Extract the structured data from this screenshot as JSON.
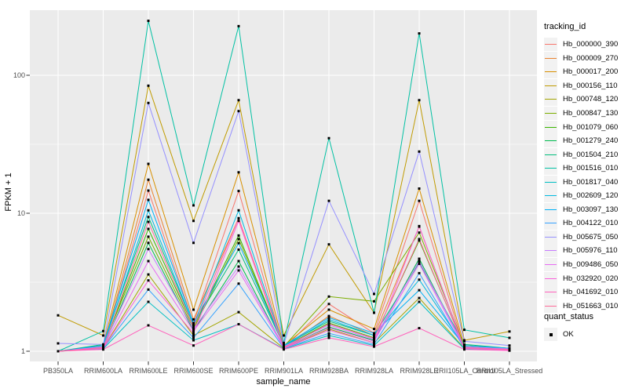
{
  "chart_data": {
    "type": "line",
    "title": "",
    "xlabel": "sample_name",
    "ylabel": "FPKM + 1",
    "y_scale": "log10",
    "grid": true,
    "legend_position": "right",
    "legend_title": "tracking_id",
    "legend2_title": "quant_status",
    "legend2_items": [
      {
        "label": "OK"
      }
    ],
    "point_shape": "black-square",
    "panel_bg": "#EBEBEB",
    "grid_color": "#FFFFFF",
    "axis_text_color": "#4D4D4D",
    "ylim": [
      0.85,
      296
    ],
    "y_ticks": [
      {
        "label": "1",
        "value": 1
      },
      {
        "label": "10",
        "value": 10
      },
      {
        "label": "100",
        "value": 100
      }
    ],
    "y_minor_values": [
      3.162,
      31.62
    ],
    "categories": [
      "PB350LA",
      "RRIM600LA",
      "RRIM600LE",
      "RRIM600SE",
      "RRIM600PE",
      "RRIM901LA",
      "RRIM928BA",
      "RRIM928LA",
      "RRIM928LE",
      "RRII105LA_Control",
      "RRII105LA_Stressed"
    ],
    "series": [
      {
        "name": "Hb_000000_390",
        "color": "#F8766D",
        "values": [
          1.0,
          1.05,
          14.6,
          1.6,
          14.5,
          1.05,
          2.2,
          1.35,
          12.3,
          1.05,
          1.02
        ]
      },
      {
        "name": "Hb_000009_270",
        "color": "#EA8331",
        "values": [
          1.0,
          1.06,
          17.5,
          1.7,
          9.2,
          1.06,
          1.8,
          1.3,
          8.0,
          1.06,
          1.03
        ]
      },
      {
        "name": "Hb_000017_200",
        "color": "#D89000",
        "values": [
          1.0,
          1.1,
          22.8,
          2.0,
          19.8,
          1.1,
          2.0,
          1.45,
          15.1,
          1.1,
          1.05
        ]
      },
      {
        "name": "Hb_000156_110",
        "color": "#C09B00",
        "values": [
          1.82,
          1.3,
          84,
          8.8,
          66,
          1.3,
          5.95,
          1.9,
          66,
          1.2,
          1.39
        ]
      },
      {
        "name": "Hb_000748_120",
        "color": "#A3A500",
        "values": [
          1.0,
          1.05,
          3.6,
          1.3,
          1.92,
          1.05,
          1.45,
          1.15,
          2.43,
          1.05,
          1.02
        ]
      },
      {
        "name": "Hb_000847_130",
        "color": "#7CAE00",
        "values": [
          1.0,
          1.1,
          6.76,
          1.45,
          6.5,
          1.08,
          2.49,
          2.3,
          7.24,
          1.1,
          1.05
        ]
      },
      {
        "name": "Hb_001079_060",
        "color": "#39B600",
        "values": [
          1.0,
          1.08,
          7.7,
          1.5,
          6.9,
          1.08,
          1.6,
          1.25,
          6.35,
          1.08,
          1.04
        ]
      },
      {
        "name": "Hb_001279_240",
        "color": "#00BB4E",
        "values": [
          1.0,
          1.06,
          6.1,
          1.4,
          4.5,
          1.06,
          1.5,
          1.2,
          4.68,
          1.06,
          1.03
        ]
      },
      {
        "name": "Hb_001504_210",
        "color": "#00BF7D",
        "values": [
          1.0,
          1.12,
          9.4,
          1.55,
          5.45,
          1.1,
          1.65,
          1.3,
          4.4,
          1.12,
          1.05
        ]
      },
      {
        "name": "Hb_001516_010",
        "color": "#00C1A3",
        "values": [
          1.0,
          1.4,
          248,
          11.4,
          227,
          1.15,
          35,
          1.9,
          201,
          1.43,
          1.25
        ]
      },
      {
        "name": "Hb_001817_040",
        "color": "#00BFC4",
        "values": [
          1.0,
          1.04,
          2.28,
          1.2,
          1.57,
          1.04,
          1.3,
          1.1,
          2.28,
          1.04,
          1.02
        ]
      },
      {
        "name": "Hb_002609_120",
        "color": "#00BAE0",
        "values": [
          1.0,
          1.08,
          10.5,
          1.55,
          10.5,
          1.08,
          1.7,
          1.3,
          3.3,
          1.08,
          1.04
        ]
      },
      {
        "name": "Hb_003097_130",
        "color": "#00B0F6",
        "values": [
          1.0,
          1.1,
          12.5,
          1.6,
          6.07,
          1.1,
          1.75,
          1.35,
          2.77,
          1.1,
          1.05
        ]
      },
      {
        "name": "Hb_004122_010",
        "color": "#35A2FF",
        "values": [
          1.0,
          1.05,
          2.8,
          1.25,
          3.09,
          1.05,
          1.35,
          1.12,
          3.68,
          1.05,
          1.02
        ]
      },
      {
        "name": "Hb_005675_050",
        "color": "#9590FF",
        "values": [
          1.14,
          1.12,
          63,
          6.1,
          55,
          1.12,
          12.3,
          2.6,
          28,
          1.18,
          1.1
        ]
      },
      {
        "name": "Hb_005976_110",
        "color": "#C77CFF",
        "values": [
          1.0,
          1.08,
          5.5,
          1.45,
          4.11,
          1.08,
          1.55,
          1.22,
          4.5,
          1.08,
          1.04
        ]
      },
      {
        "name": "Hb_009486_050",
        "color": "#E76BF3",
        "values": [
          1.0,
          1.06,
          4.5,
          1.4,
          3.85,
          1.06,
          1.48,
          1.18,
          4.3,
          1.06,
          1.03
        ]
      },
      {
        "name": "Hb_032920_020",
        "color": "#FA62DB",
        "values": [
          1.0,
          1.05,
          3.26,
          1.35,
          8.8,
          1.05,
          1.42,
          1.15,
          8.07,
          1.05,
          1.02
        ]
      },
      {
        "name": "Hb_041692_010",
        "color": "#FF62BC",
        "values": [
          1.0,
          1.03,
          1.54,
          1.1,
          1.57,
          1.03,
          1.25,
          1.08,
          1.47,
          1.03,
          1.01
        ]
      },
      {
        "name": "Hb_051663_010",
        "color": "#FF6A98",
        "values": [
          1.0,
          1.06,
          8.66,
          1.5,
          9.2,
          1.06,
          1.58,
          1.24,
          6.5,
          1.06,
          1.03
        ]
      }
    ]
  }
}
